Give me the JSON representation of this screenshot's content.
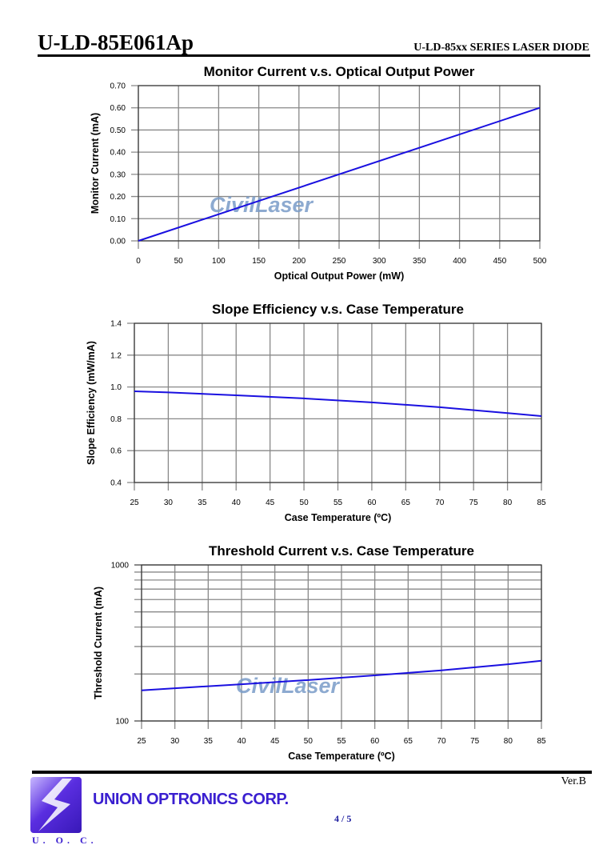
{
  "header": {
    "title": "U-LD-85E061Ap",
    "series": "U-LD-85xx SERIES LASER DIODE"
  },
  "watermark": "CivilLaser",
  "footer": {
    "company": "UNION OPTRONICS CORP.",
    "logo_text": "U. O. C.",
    "version": "Ver.B",
    "page": "4 / 5"
  },
  "colors": {
    "line": "#1a10e0",
    "grid": "#888888"
  },
  "chart_data": [
    {
      "type": "line",
      "title": "Monitor Current v.s. Optical Output Power",
      "xlabel": "Optical Output Power (mW)",
      "ylabel": "Monitor Current (mA)",
      "xlim": [
        0,
        500
      ],
      "ylim": [
        0,
        0.7
      ],
      "xticks": [
        "0",
        "50",
        "100",
        "150",
        "200",
        "250",
        "300",
        "350",
        "400",
        "450",
        "500"
      ],
      "yticks": [
        "0.00",
        "0.10",
        "0.20",
        "0.30",
        "0.40",
        "0.50",
        "0.60",
        "0.70"
      ],
      "yscale": "linear",
      "grid": true,
      "x": [
        0,
        500
      ],
      "y": [
        0,
        0.6
      ]
    },
    {
      "type": "line",
      "title": "Slope Efficiency v.s. Case Temperature",
      "xlabel": "Case Temperature (ºC)",
      "ylabel": "Slope Efficiency (mW/mA)",
      "xlim": [
        25,
        85
      ],
      "ylim": [
        0.4,
        1.4
      ],
      "xticks": [
        "25",
        "30",
        "35",
        "40",
        "45",
        "50",
        "55",
        "60",
        "65",
        "70",
        "75",
        "80",
        "85"
      ],
      "yticks": [
        "0.4",
        "0.6",
        "0.8",
        "1.0",
        "1.2",
        "1.4"
      ],
      "yscale": "linear",
      "grid": true,
      "x": [
        25,
        30,
        40,
        50,
        60,
        70,
        80,
        85
      ],
      "y": [
        0.973,
        0.966,
        0.948,
        0.928,
        0.903,
        0.873,
        0.836,
        0.817
      ]
    },
    {
      "type": "line",
      "title": "Threshold Current v.s. Case Temperature",
      "xlabel": "Case Temperature (ºC)",
      "ylabel": "Threshold Current (mA)",
      "xlim": [
        25,
        85
      ],
      "ylim": [
        100,
        1000
      ],
      "xticks": [
        "25",
        "30",
        "35",
        "40",
        "45",
        "50",
        "55",
        "60",
        "65",
        "70",
        "75",
        "80",
        "85"
      ],
      "yticks": [
        "100",
        "1000"
      ],
      "yscale": "log",
      "grid": true,
      "x": [
        25,
        30,
        40,
        50,
        60,
        70,
        80,
        85
      ],
      "y": [
        157,
        162,
        172,
        183,
        196,
        211,
        231,
        243
      ]
    }
  ]
}
